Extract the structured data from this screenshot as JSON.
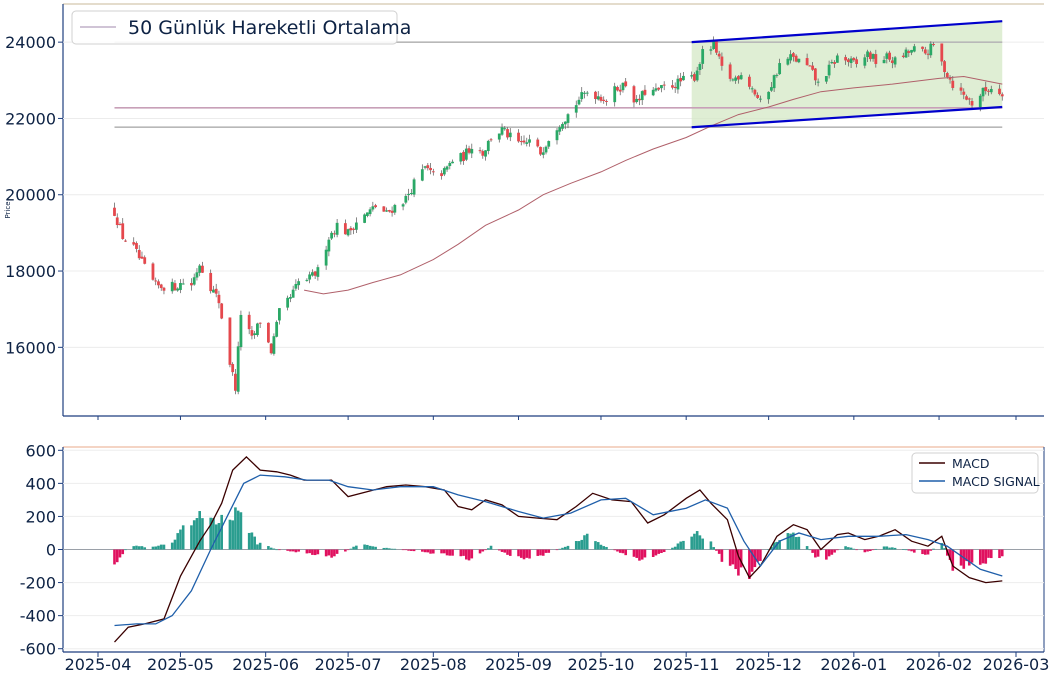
{
  "chart_data": [
    {
      "type": "candlestick",
      "ylabel": "Price",
      "ylim": [
        14200,
        25000
      ],
      "yticks": [
        16000,
        18000,
        20000,
        22000,
        24000
      ],
      "legend": {
        "position": "top-left",
        "label": "50 Günlük Hareketli Ortalama"
      },
      "colors": {
        "up": "#2aa866",
        "down": "#e5484d",
        "ma": "#b0606a",
        "channel": "#0000cc",
        "channel_fill": "#d4e8c6",
        "hline_purple": "#c8a0b8",
        "hline_gray": "#b8b8b8"
      },
      "horizontal_lines": [
        24000,
        22280,
        21770
      ],
      "channel": {
        "start_date": "2025-11-03",
        "end_date": "2026-02-24",
        "upper": [
          24000,
          24550
        ],
        "lower": [
          21770,
          22300
        ]
      },
      "close_anchors": [
        [
          "2025-04-07",
          19550
        ],
        [
          "2025-04-10",
          18900
        ],
        [
          "2025-04-14",
          18600
        ],
        [
          "2025-04-17",
          18200
        ],
        [
          "2025-04-22",
          17600
        ],
        [
          "2025-04-25",
          17600
        ],
        [
          "2025-04-29",
          17600
        ],
        [
          "2025-05-02",
          17700
        ],
        [
          "2025-05-05",
          17650
        ],
        [
          "2025-05-08",
          18200
        ],
        [
          "2025-05-12",
          17600
        ],
        [
          "2025-05-15",
          17200
        ],
        [
          "2025-05-19",
          15600
        ],
        [
          "2025-05-21",
          14950
        ],
        [
          "2025-05-23",
          16900
        ],
        [
          "2025-05-27",
          16200
        ],
        [
          "2025-05-30",
          16700
        ],
        [
          "2025-06-03",
          15900
        ],
        [
          "2025-06-06",
          16900
        ],
        [
          "2025-06-10",
          17300
        ],
        [
          "2025-06-13",
          17700
        ],
        [
          "2025-06-17",
          17800
        ],
        [
          "2025-06-20",
          18000
        ],
        [
          "2025-06-24",
          18900
        ],
        [
          "2025-06-27",
          19200
        ],
        [
          "2025-07-01",
          19000
        ],
        [
          "2025-07-04",
          19300
        ],
        [
          "2025-07-08",
          19500
        ],
        [
          "2025-07-11",
          19700
        ],
        [
          "2025-07-15",
          19500
        ],
        [
          "2025-07-18",
          19700
        ],
        [
          "2025-07-22",
          19900
        ],
        [
          "2025-07-25",
          20300
        ],
        [
          "2025-07-29",
          20700
        ],
        [
          "2025-08-01",
          20500
        ],
        [
          "2025-08-05",
          20600
        ],
        [
          "2025-08-08",
          20900
        ],
        [
          "2025-08-12",
          21000
        ],
        [
          "2025-08-15",
          21300
        ],
        [
          "2025-08-19",
          21100
        ],
        [
          "2025-08-22",
          21500
        ],
        [
          "2025-08-26",
          21700
        ],
        [
          "2025-08-29",
          21500
        ],
        [
          "2025-09-02",
          21300
        ],
        [
          "2025-09-05",
          21400
        ],
        [
          "2025-09-09",
          21100
        ],
        [
          "2025-09-12",
          21500
        ],
        [
          "2025-09-16",
          21900
        ],
        [
          "2025-09-19",
          22100
        ],
        [
          "2025-09-23",
          22500
        ],
        [
          "2025-09-26",
          22700
        ],
        [
          "2025-09-30",
          22600
        ],
        [
          "2025-10-03",
          22500
        ],
        [
          "2025-10-07",
          22800
        ],
        [
          "2025-10-10",
          22900
        ],
        [
          "2025-10-14",
          22400
        ],
        [
          "2025-10-17",
          22700
        ],
        [
          "2025-10-21",
          22700
        ],
        [
          "2025-10-24",
          22800
        ],
        [
          "2025-10-28",
          22900
        ],
        [
          "2025-10-31",
          23000
        ],
        [
          "2025-11-04",
          23100
        ],
        [
          "2025-11-07",
          23700
        ],
        [
          "2025-11-11",
          23900
        ],
        [
          "2025-11-14",
          23300
        ],
        [
          "2025-11-18",
          23000
        ],
        [
          "2025-11-21",
          23200
        ],
        [
          "2025-11-25",
          22800
        ],
        [
          "2025-11-28",
          22400
        ],
        [
          "2025-12-02",
          22900
        ],
        [
          "2025-12-05",
          23400
        ],
        [
          "2025-12-09",
          23600
        ],
        [
          "2025-12-12",
          23500
        ],
        [
          "2025-12-16",
          23300
        ],
        [
          "2025-12-19",
          22900
        ],
        [
          "2025-12-23",
          23300
        ],
        [
          "2025-12-26",
          23600
        ],
        [
          "2025-12-30",
          23500
        ],
        [
          "2026-01-02",
          23400
        ],
        [
          "2026-01-06",
          23700
        ],
        [
          "2026-01-09",
          23500
        ],
        [
          "2026-01-13",
          23600
        ],
        [
          "2026-01-16",
          23500
        ],
        [
          "2026-01-20",
          23700
        ],
        [
          "2026-01-23",
          23800
        ],
        [
          "2026-01-27",
          23700
        ],
        [
          "2026-01-30",
          23900
        ],
        [
          "2026-02-03",
          23300
        ],
        [
          "2026-02-06",
          22900
        ],
        [
          "2026-02-10",
          22600
        ],
        [
          "2026-02-13",
          22400
        ],
        [
          "2026-02-17",
          22700
        ],
        [
          "2026-02-20",
          22800
        ],
        [
          "2026-02-24",
          22700
        ]
      ],
      "ma50": [
        [
          "2025-06-15",
          17500
        ],
        [
          "2025-06-22",
          17400
        ],
        [
          "2025-07-01",
          17500
        ],
        [
          "2025-07-10",
          17700
        ],
        [
          "2025-07-20",
          17900
        ],
        [
          "2025-08-01",
          18300
        ],
        [
          "2025-08-10",
          18700
        ],
        [
          "2025-08-20",
          19200
        ],
        [
          "2025-09-01",
          19600
        ],
        [
          "2025-09-10",
          20000
        ],
        [
          "2025-09-20",
          20300
        ],
        [
          "2025-10-01",
          20600
        ],
        [
          "2025-10-10",
          20900
        ],
        [
          "2025-10-20",
          21200
        ],
        [
          "2025-11-01",
          21500
        ],
        [
          "2025-11-10",
          21800
        ],
        [
          "2025-11-20",
          22100
        ],
        [
          "2025-12-01",
          22300
        ],
        [
          "2025-12-10",
          22500
        ],
        [
          "2025-12-20",
          22700
        ],
        [
          "2026-01-01",
          22800
        ],
        [
          "2026-01-15",
          22900
        ],
        [
          "2026-02-01",
          23050
        ],
        [
          "2026-02-10",
          23100
        ],
        [
          "2026-02-24",
          22900
        ]
      ]
    },
    {
      "type": "line+bar",
      "ylim": [
        -620,
        620
      ],
      "yticks": [
        600,
        400,
        200,
        0,
        -200,
        -400,
        -600
      ],
      "legend": {
        "position": "top-right"
      },
      "x_ticks": [
        "2025-04",
        "2025-05",
        "2025-06",
        "2025-07",
        "2025-08",
        "2025-09",
        "2025-10",
        "2025-11",
        "2025-12",
        "2026-01",
        "2026-02",
        "2026-03"
      ],
      "series": [
        {
          "name": "MACD",
          "color": "#3a0000",
          "points": [
            [
              "2025-04-07",
              -560
            ],
            [
              "2025-04-12",
              -470
            ],
            [
              "2025-04-18",
              -450
            ],
            [
              "2025-04-25",
              -420
            ],
            [
              "2025-05-01",
              -160
            ],
            [
              "2025-05-08",
              50
            ],
            [
              "2025-05-12",
              150
            ],
            [
              "2025-05-16",
              280
            ],
            [
              "2025-05-20",
              480
            ],
            [
              "2025-05-25",
              560
            ],
            [
              "2025-05-30",
              480
            ],
            [
              "2025-06-05",
              470
            ],
            [
              "2025-06-10",
              450
            ],
            [
              "2025-06-15",
              420
            ],
            [
              "2025-06-20",
              420
            ],
            [
              "2025-06-25",
              420
            ],
            [
              "2025-07-01",
              320
            ],
            [
              "2025-07-08",
              350
            ],
            [
              "2025-07-15",
              380
            ],
            [
              "2025-07-22",
              390
            ],
            [
              "2025-07-29",
              380
            ],
            [
              "2025-08-05",
              360
            ],
            [
              "2025-08-10",
              260
            ],
            [
              "2025-08-15",
              240
            ],
            [
              "2025-08-20",
              300
            ],
            [
              "2025-08-26",
              270
            ],
            [
              "2025-09-01",
              200
            ],
            [
              "2025-09-08",
              190
            ],
            [
              "2025-09-15",
              180
            ],
            [
              "2025-09-22",
              260
            ],
            [
              "2025-09-28",
              340
            ],
            [
              "2025-10-05",
              300
            ],
            [
              "2025-10-12",
              290
            ],
            [
              "2025-10-18",
              160
            ],
            [
              "2025-10-24",
              210
            ],
            [
              "2025-11-01",
              310
            ],
            [
              "2025-11-06",
              360
            ],
            [
              "2025-11-10",
              280
            ],
            [
              "2025-11-16",
              180
            ],
            [
              "2025-11-20",
              -40
            ],
            [
              "2025-11-24",
              -170
            ],
            [
              "2025-11-28",
              -100
            ],
            [
              "2025-12-04",
              80
            ],
            [
              "2025-12-10",
              150
            ],
            [
              "2025-12-15",
              120
            ],
            [
              "2025-12-20",
              0
            ],
            [
              "2025-12-26",
              90
            ],
            [
              "2025-12-30",
              100
            ],
            [
              "2026-01-05",
              60
            ],
            [
              "2026-01-10",
              80
            ],
            [
              "2026-01-16",
              120
            ],
            [
              "2026-01-22",
              50
            ],
            [
              "2026-01-28",
              20
            ],
            [
              "2026-02-02",
              80
            ],
            [
              "2026-02-06",
              -100
            ],
            [
              "2026-02-12",
              -170
            ],
            [
              "2026-02-18",
              -200
            ],
            [
              "2026-02-24",
              -190
            ]
          ]
        },
        {
          "name": "MACD SIGNAL",
          "color": "#1f5faa",
          "points": [
            [
              "2025-04-07",
              -460
            ],
            [
              "2025-04-15",
              -450
            ],
            [
              "2025-04-22",
              -450
            ],
            [
              "2025-04-28",
              -400
            ],
            [
              "2025-05-05",
              -250
            ],
            [
              "2025-05-12",
              0
            ],
            [
              "2025-05-18",
              200
            ],
            [
              "2025-05-24",
              400
            ],
            [
              "2025-05-30",
              450
            ],
            [
              "2025-06-08",
              440
            ],
            [
              "2025-06-16",
              420
            ],
            [
              "2025-06-24",
              420
            ],
            [
              "2025-07-01",
              380
            ],
            [
              "2025-07-10",
              360
            ],
            [
              "2025-07-20",
              380
            ],
            [
              "2025-08-01",
              380
            ],
            [
              "2025-08-10",
              330
            ],
            [
              "2025-08-20",
              290
            ],
            [
              "2025-09-01",
              230
            ],
            [
              "2025-09-10",
              190
            ],
            [
              "2025-09-20",
              220
            ],
            [
              "2025-10-01",
              300
            ],
            [
              "2025-10-10",
              310
            ],
            [
              "2025-10-20",
              210
            ],
            [
              "2025-11-01",
              250
            ],
            [
              "2025-11-08",
              300
            ],
            [
              "2025-11-16",
              250
            ],
            [
              "2025-11-22",
              50
            ],
            [
              "2025-11-28",
              -100
            ],
            [
              "2025-12-05",
              50
            ],
            [
              "2025-12-12",
              100
            ],
            [
              "2025-12-20",
              60
            ],
            [
              "2025-12-30",
              80
            ],
            [
              "2026-01-10",
              80
            ],
            [
              "2026-01-20",
              90
            ],
            [
              "2026-01-28",
              60
            ],
            [
              "2026-02-04",
              20
            ],
            [
              "2026-02-10",
              -50
            ],
            [
              "2026-02-16",
              -120
            ],
            [
              "2026-02-24",
              -160
            ]
          ]
        }
      ],
      "histogram_colors": {
        "positive": "#2a9d8f",
        "negative": "#e0115f"
      },
      "histogram_anchors": [
        [
          "2025-04-07",
          -120
        ],
        [
          "2025-04-12",
          30
        ],
        [
          "2025-04-20",
          10
        ],
        [
          "2025-04-28",
          40
        ],
        [
          "2025-05-02",
          120
        ],
        [
          "2025-05-08",
          190
        ],
        [
          "2025-05-12",
          200
        ],
        [
          "2025-05-16",
          180
        ],
        [
          "2025-05-21",
          210
        ],
        [
          "2025-05-25",
          160
        ],
        [
          "2025-05-29",
          40
        ],
        [
          "2025-06-05",
          0
        ],
        [
          "2025-06-15",
          -20
        ],
        [
          "2025-06-25",
          -50
        ],
        [
          "2025-07-05",
          30
        ],
        [
          "2025-07-15",
          10
        ],
        [
          "2025-07-25",
          -10
        ],
        [
          "2025-08-05",
          -30
        ],
        [
          "2025-08-15",
          -60
        ],
        [
          "2025-08-22",
          20
        ],
        [
          "2025-08-29",
          -40
        ],
        [
          "2025-09-05",
          -60
        ],
        [
          "2025-09-12",
          -20
        ],
        [
          "2025-09-20",
          30
        ],
        [
          "2025-09-26",
          80
        ],
        [
          "2025-10-02",
          20
        ],
        [
          "2025-10-10",
          -30
        ],
        [
          "2025-10-16",
          -70
        ],
        [
          "2025-10-24",
          -20
        ],
        [
          "2025-11-01",
          60
        ],
        [
          "2025-11-06",
          100
        ],
        [
          "2025-11-10",
          40
        ],
        [
          "2025-11-14",
          -60
        ],
        [
          "2025-11-20",
          -130
        ],
        [
          "2025-11-24",
          -170
        ],
        [
          "2025-11-28",
          -60
        ],
        [
          "2025-12-04",
          60
        ],
        [
          "2025-12-09",
          90
        ],
        [
          "2025-12-13",
          60
        ],
        [
          "2025-12-18",
          -40
        ],
        [
          "2025-12-22",
          -70
        ],
        [
          "2025-12-28",
          30
        ],
        [
          "2026-01-05",
          -20
        ],
        [
          "2026-01-12",
          20
        ],
        [
          "2026-01-20",
          0
        ],
        [
          "2026-01-27",
          -40
        ],
        [
          "2026-02-02",
          50
        ],
        [
          "2026-02-06",
          -110
        ],
        [
          "2026-02-12",
          -90
        ],
        [
          "2026-02-18",
          -70
        ],
        [
          "2026-02-24",
          -40
        ]
      ]
    }
  ]
}
